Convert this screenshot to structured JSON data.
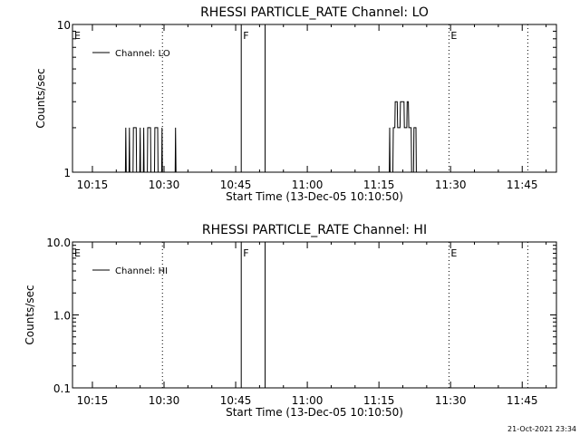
{
  "page": {
    "background": "#ffffff",
    "ink": "#000000"
  },
  "timestamp": "21-Oct-2021 23:34",
  "chart_data": [
    {
      "type": "line",
      "title": "RHESSI PARTICLE_RATE Channel: LO",
      "xlabel": "Start Time (13-Dec-05 10:10:50)",
      "ylabel": "Counts/sec",
      "yscale": "log",
      "xlim": [
        "10:10:50",
        "11:52:10"
      ],
      "ylim": [
        1,
        10
      ],
      "xticks": [
        "10:15",
        "10:30",
        "10:45",
        "11:00",
        "11:15",
        "11:30",
        "11:45"
      ],
      "yticks": [
        "1",
        "10"
      ],
      "legend": {
        "label": "Channel: LO",
        "position": "top-left"
      },
      "markers": [
        {
          "label": "E",
          "time": "10:10:50",
          "style": "dotted"
        },
        {
          "label": "",
          "time": "10:29:40",
          "style": "dotted"
        },
        {
          "label": "F",
          "time": "10:46:10",
          "style": "solid"
        },
        {
          "label": "",
          "time": "10:51:10",
          "style": "solid"
        },
        {
          "label": "E",
          "time": "11:29:40",
          "style": "dotted"
        },
        {
          "label": "",
          "time": "11:46:10",
          "style": "dotted"
        }
      ],
      "series": [
        {
          "values": [
            [
              "10:21:55",
              1
            ],
            [
              "10:22:00",
              2
            ],
            [
              "10:22:05",
              1
            ],
            [
              "10:22:40",
              1
            ],
            [
              "10:22:45",
              2
            ],
            [
              "10:22:50",
              1
            ],
            [
              "10:23:30",
              1
            ],
            [
              "10:23:35",
              2
            ],
            [
              "10:24:10",
              2
            ],
            [
              "10:24:15",
              1
            ],
            [
              "10:24:55",
              1
            ],
            [
              "10:25:00",
              2
            ],
            [
              "10:25:05",
              1
            ],
            [
              "10:25:40",
              1
            ],
            [
              "10:25:45",
              2
            ],
            [
              "10:25:50",
              1
            ],
            [
              "10:26:30",
              1
            ],
            [
              "10:26:35",
              2
            ],
            [
              "10:27:10",
              2
            ],
            [
              "10:27:15",
              1
            ],
            [
              "10:28:00",
              1
            ],
            [
              "10:28:05",
              2
            ],
            [
              "10:28:40",
              2
            ],
            [
              "10:28:45",
              1
            ],
            [
              "10:29:30",
              1
            ],
            [
              "10:29:35",
              2
            ],
            [
              "10:29:40",
              1
            ],
            [
              "10:32:20",
              1
            ],
            [
              "10:32:25",
              2
            ],
            [
              "10:32:30",
              1
            ],
            [
              "11:17:10",
              1
            ],
            [
              "11:17:15",
              2
            ],
            [
              "11:17:20",
              1
            ],
            [
              "11:17:55",
              1
            ],
            [
              "11:18:00",
              2
            ],
            [
              "11:18:20",
              2
            ],
            [
              "11:18:25",
              3
            ],
            [
              "11:18:50",
              3
            ],
            [
              "11:18:55",
              2
            ],
            [
              "11:19:25",
              2
            ],
            [
              "11:19:30",
              3
            ],
            [
              "11:20:15",
              3
            ],
            [
              "11:20:20",
              2
            ],
            [
              "11:20:50",
              2
            ],
            [
              "11:20:55",
              3
            ],
            [
              "11:21:10",
              3
            ],
            [
              "11:21:15",
              2
            ],
            [
              "11:21:45",
              2
            ],
            [
              "11:21:50",
              1
            ],
            [
              "11:22:15",
              1
            ],
            [
              "11:22:20",
              2
            ],
            [
              "11:22:45",
              2
            ],
            [
              "11:22:50",
              1
            ]
          ]
        }
      ]
    },
    {
      "type": "line",
      "title": "RHESSI PARTICLE_RATE Channel: HI",
      "xlabel": "Start Time (13-Dec-05 10:10:50)",
      "ylabel": "Counts/sec",
      "yscale": "log",
      "xlim": [
        "10:10:50",
        "11:52:10"
      ],
      "ylim": [
        0.1,
        10
      ],
      "xticks": [
        "10:15",
        "10:30",
        "10:45",
        "11:00",
        "11:15",
        "11:30",
        "11:45"
      ],
      "yticks": [
        "0.1",
        "1.0",
        "10.0"
      ],
      "legend": {
        "label": "Channel: HI",
        "position": "top-left"
      },
      "markers": [
        {
          "label": "E",
          "time": "10:10:50",
          "style": "dotted"
        },
        {
          "label": "",
          "time": "10:29:40",
          "style": "dotted"
        },
        {
          "label": "F",
          "time": "10:46:10",
          "style": "solid"
        },
        {
          "label": "",
          "time": "10:51:10",
          "style": "solid"
        },
        {
          "label": "E",
          "time": "11:29:40",
          "style": "dotted"
        },
        {
          "label": "",
          "time": "11:46:10",
          "style": "dotted"
        }
      ],
      "series": [
        {
          "values": []
        }
      ]
    }
  ]
}
